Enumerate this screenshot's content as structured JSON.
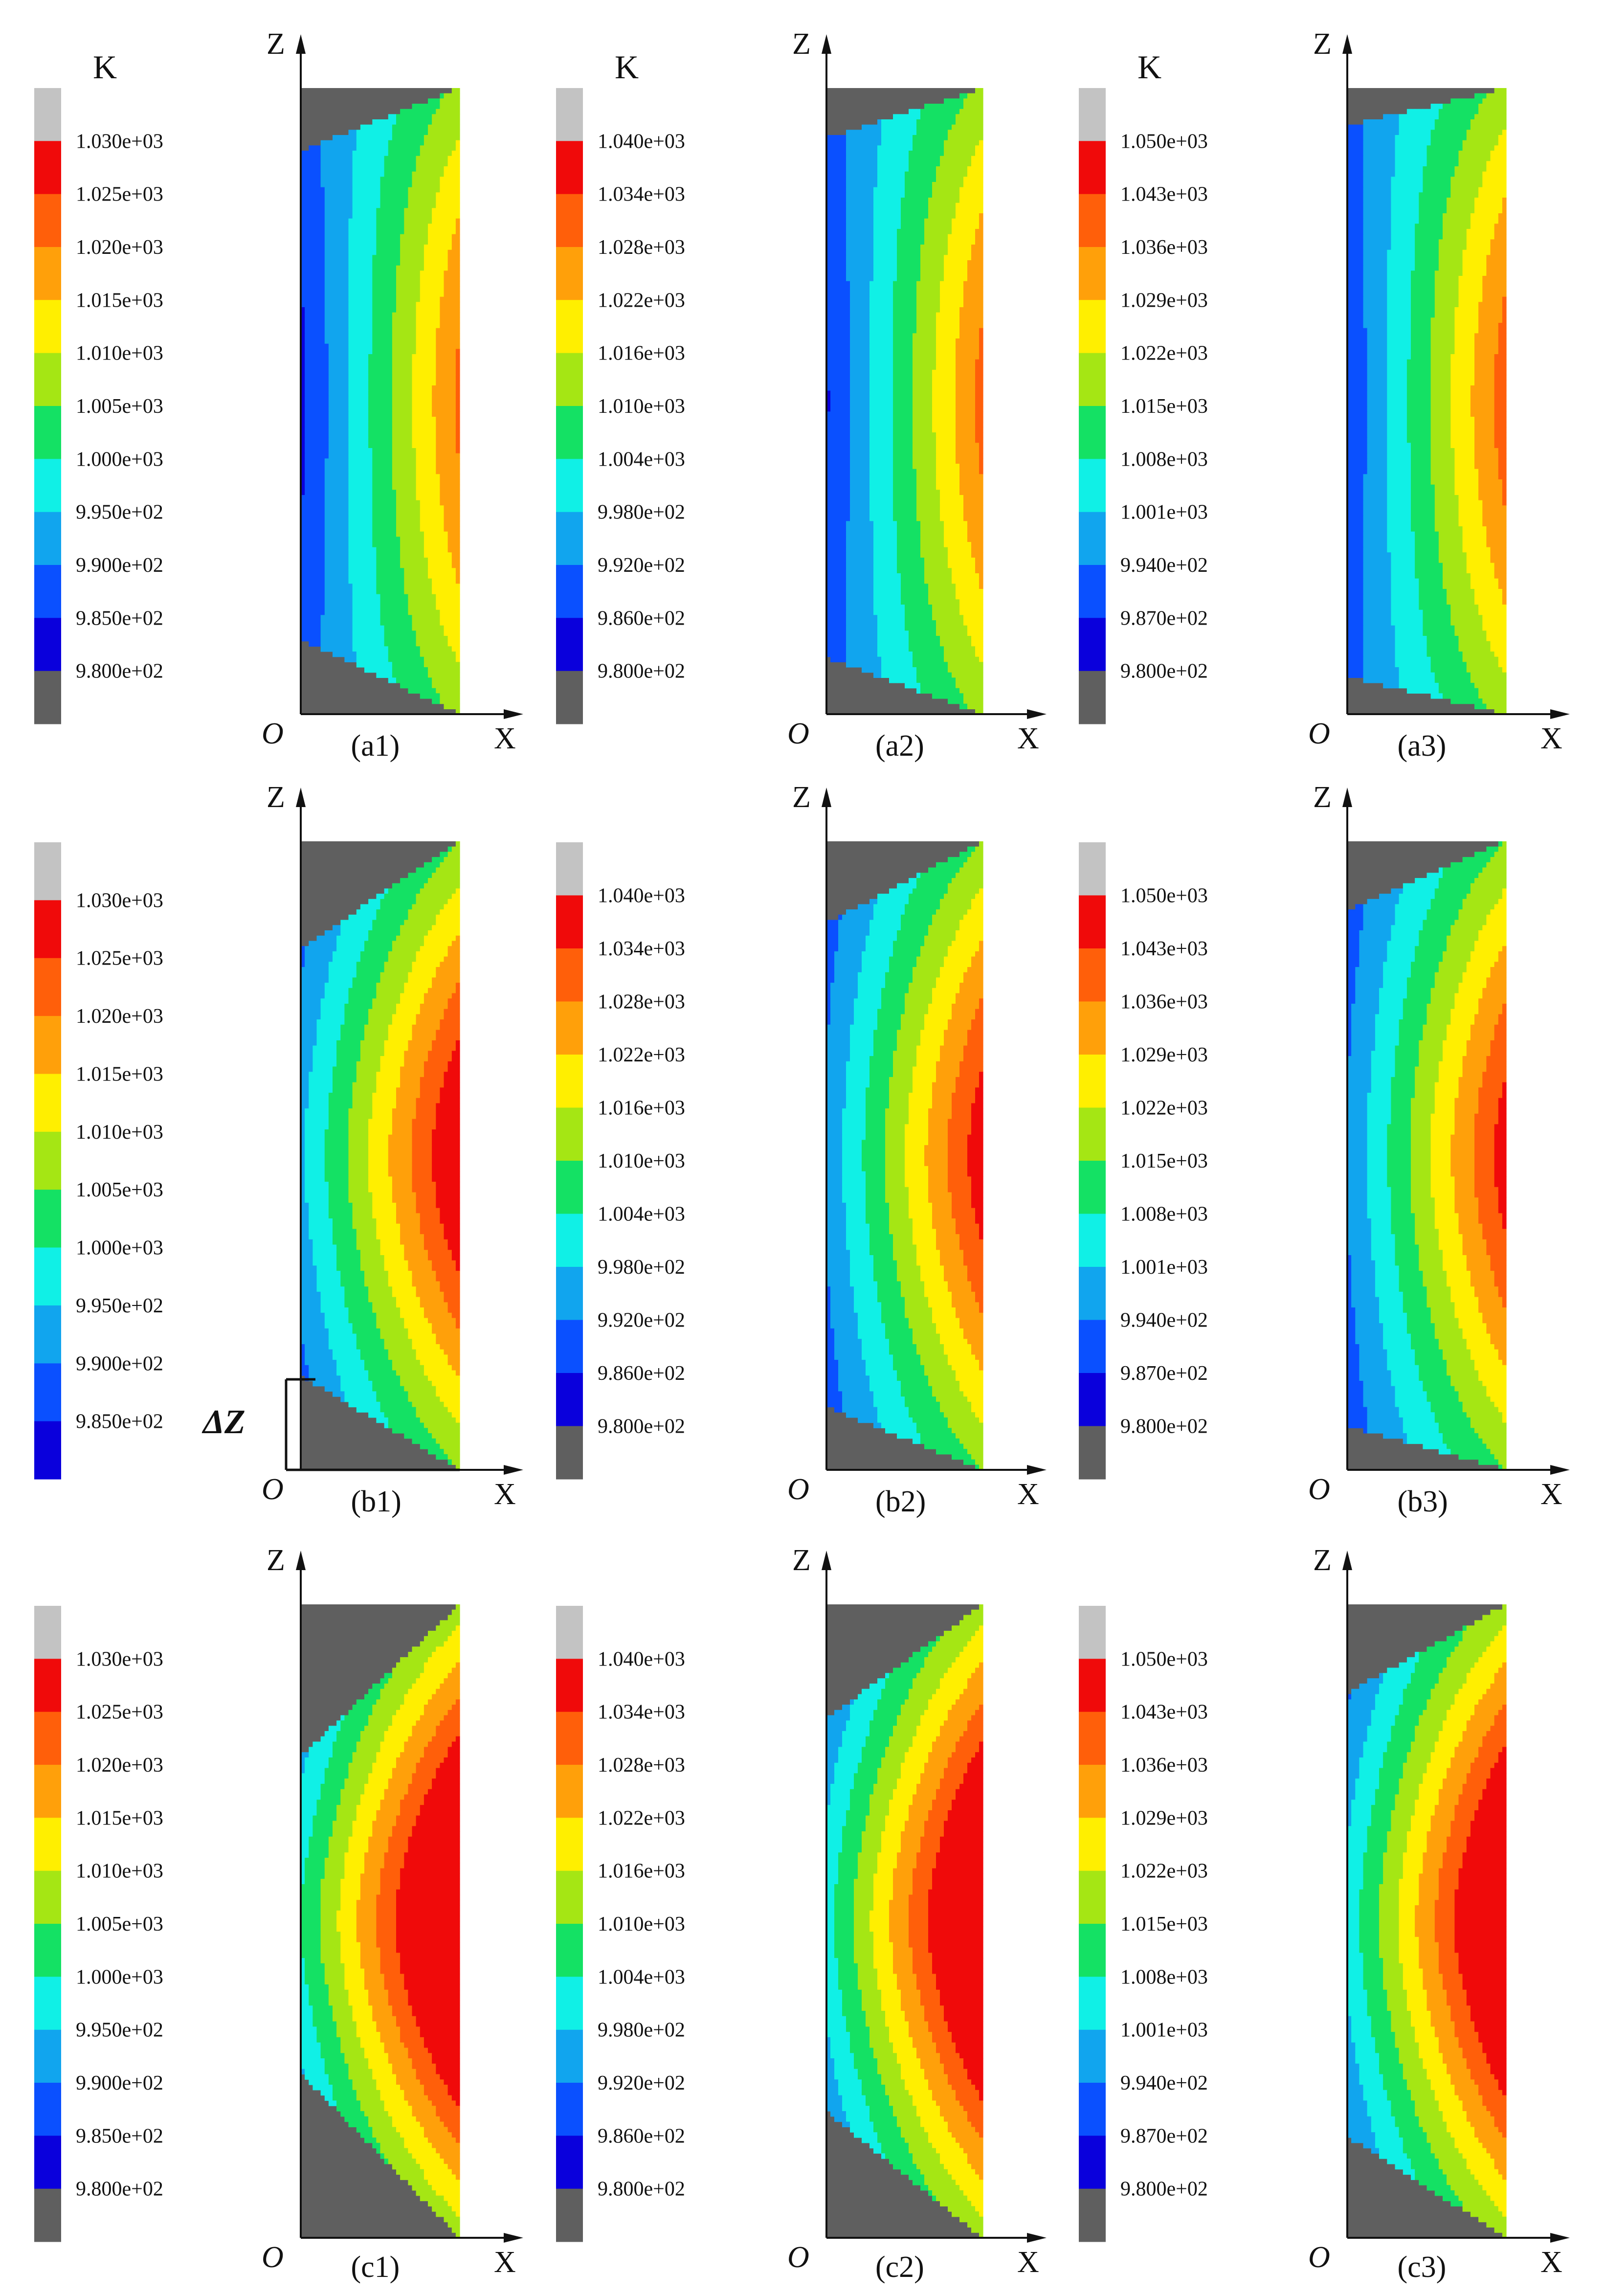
{
  "colormap": [
    "#5f5f5f",
    "#0a00dc",
    "#0a50ff",
    "#11a5ee",
    "#10f0e6",
    "#14e164",
    "#a5e614",
    "#ffef00",
    "#ffa00a",
    "#ff5f0a",
    "#f00a0a",
    "#c3c3c3"
  ],
  "axis_labels": {
    "z": "Z",
    "x": "X",
    "origin": "O"
  },
  "delta_label": "ΔZ",
  "panels": [
    {
      "caption": "(a1)",
      "unit": "K",
      "levels": [
        "1.030e+03",
        "1.025e+03",
        "1.020e+03",
        "1.015e+03",
        "1.010e+03",
        "1.005e+03",
        "1.000e+03",
        "9.950e+02",
        "9.900e+02",
        "9.850e+02",
        "9.800e+02"
      ]
    },
    {
      "caption": "(a2)",
      "unit": "K",
      "levels": [
        "1.040e+03",
        "1.034e+03",
        "1.028e+03",
        "1.022e+03",
        "1.016e+03",
        "1.010e+03",
        "1.004e+03",
        "9.980e+02",
        "9.920e+02",
        "9.860e+02",
        "9.800e+02"
      ]
    },
    {
      "caption": "(a3)",
      "unit": "K",
      "levels": [
        "1.050e+03",
        "1.043e+03",
        "1.036e+03",
        "1.029e+03",
        "1.022e+03",
        "1.015e+03",
        "1.008e+03",
        "1.001e+03",
        "9.940e+02",
        "9.870e+02",
        "9.800e+02"
      ]
    },
    {
      "caption": "(b1)",
      "unit": "",
      "levels": [
        "1.030e+03",
        "1.025e+03",
        "1.020e+03",
        "1.015e+03",
        "1.010e+03",
        "1.005e+03",
        "1.000e+03",
        "9.950e+02",
        "9.900e+02",
        "9.850e+02"
      ]
    },
    {
      "caption": "(b2)",
      "unit": "",
      "levels": [
        "1.040e+03",
        "1.034e+03",
        "1.028e+03",
        "1.022e+03",
        "1.016e+03",
        "1.010e+03",
        "1.004e+03",
        "9.980e+02",
        "9.920e+02",
        "9.860e+02",
        "9.800e+02"
      ]
    },
    {
      "caption": "(b3)",
      "unit": "",
      "levels": [
        "1.050e+03",
        "1.043e+03",
        "1.036e+03",
        "1.029e+03",
        "1.022e+03",
        "1.015e+03",
        "1.008e+03",
        "1.001e+03",
        "9.940e+02",
        "9.870e+02",
        "9.800e+02"
      ]
    },
    {
      "caption": "(c1)",
      "unit": "",
      "levels": [
        "1.030e+03",
        "1.025e+03",
        "1.020e+03",
        "1.015e+03",
        "1.010e+03",
        "1.005e+03",
        "1.000e+03",
        "9.950e+02",
        "9.900e+02",
        "9.850e+02",
        "9.800e+02"
      ]
    },
    {
      "caption": "(c2)",
      "unit": "",
      "levels": [
        "1.040e+03",
        "1.034e+03",
        "1.028e+03",
        "1.022e+03",
        "1.016e+03",
        "1.010e+03",
        "1.004e+03",
        "9.980e+02",
        "9.920e+02",
        "9.860e+02",
        "9.800e+02"
      ]
    },
    {
      "caption": "(c3)",
      "unit": "",
      "levels": [
        "1.050e+03",
        "1.043e+03",
        "1.036e+03",
        "1.029e+03",
        "1.022e+03",
        "1.015e+03",
        "1.008e+03",
        "1.001e+03",
        "9.940e+02",
        "9.870e+02",
        "9.800e+02"
      ]
    }
  ]
}
